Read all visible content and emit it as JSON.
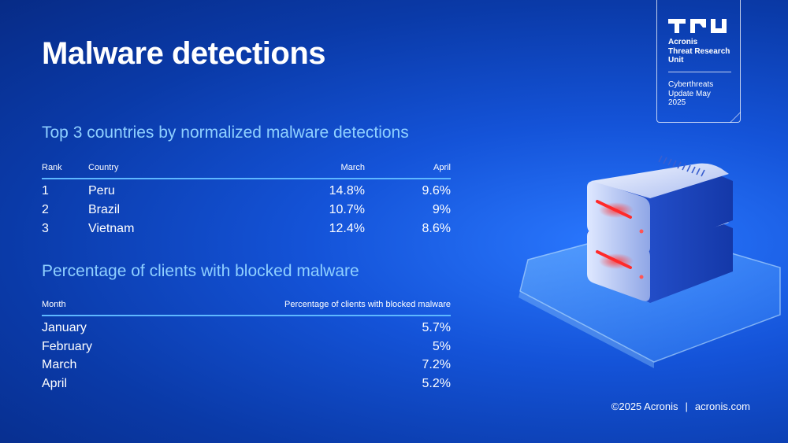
{
  "header": {
    "title": "Malware detections"
  },
  "badge": {
    "logo": "TRU",
    "org_lines": [
      "Acronis",
      "Threat Research",
      "Unit"
    ],
    "update_lines": [
      "Cyberthreats",
      "Update May",
      "2025"
    ]
  },
  "top_countries": {
    "title": "Top 3 countries by normalized malware detections",
    "columns": {
      "rank": "Rank",
      "country": "Country",
      "march": "March",
      "april": "April"
    },
    "rows": [
      {
        "rank": "1",
        "country": "Peru",
        "march": "14.8%",
        "april": "9.6%"
      },
      {
        "rank": "2",
        "country": "Brazil",
        "march": "10.7%",
        "april": "9%"
      },
      {
        "rank": "3",
        "country": "Vietnam",
        "march": "12.4%",
        "april": "8.6%"
      }
    ]
  },
  "blocked_clients": {
    "title": "Percentage of clients with blocked malware",
    "columns": {
      "month": "Month",
      "percentage": "Percentage of clients with blocked malware"
    },
    "rows": [
      {
        "month": "January",
        "percentage": "5.7%"
      },
      {
        "month": "February",
        "percentage": "5%"
      },
      {
        "month": "March",
        "percentage": "7.2%"
      },
      {
        "month": "April",
        "percentage": "5.2%"
      }
    ]
  },
  "footer": {
    "copyright": "©2025 Acronis",
    "separator": "|",
    "website": "acronis.com"
  },
  "colors": {
    "background": "#0a3aa8",
    "section_title": "#8fd0ff",
    "rule": "#5eb8ff",
    "led": "#ff2a2a"
  },
  "illustration": {
    "icon": "server-stack-icon"
  }
}
